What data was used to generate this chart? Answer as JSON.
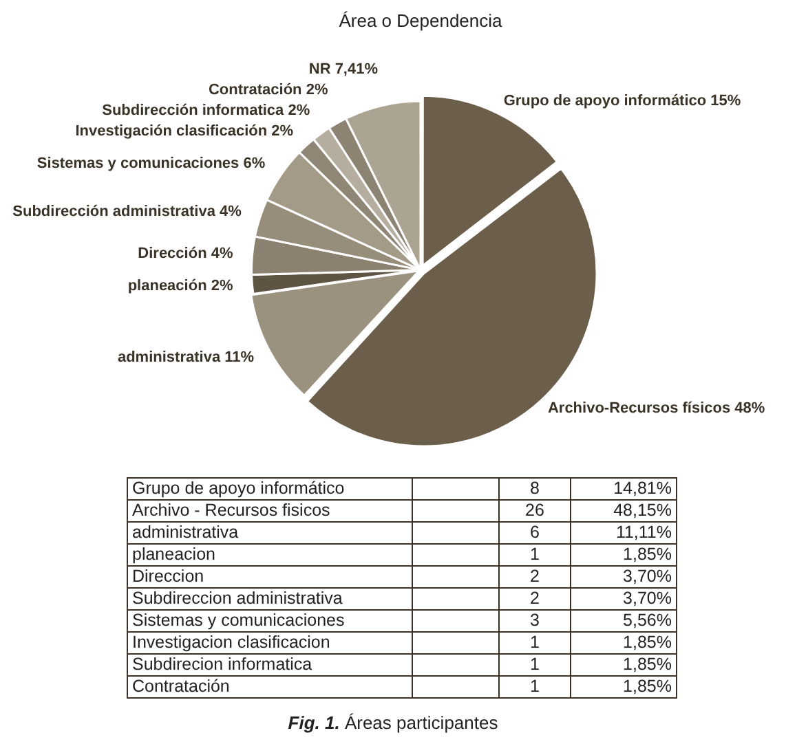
{
  "chart_data": [
    {
      "type": "pie",
      "title": "Área o Dependencia",
      "categories": [
        "Grupo de apoyo informático",
        "Archivo-Recursos físicos",
        "administrativa",
        "planeación",
        "Dirección",
        "Subdirección administrativa",
        "Sistemas y comunicaciones",
        "Investigación clasificación",
        "Subdirección informatica",
        "Contratación",
        "NR"
      ],
      "values": [
        14.81,
        48.15,
        11.11,
        1.85,
        3.7,
        3.7,
        5.56,
        1.85,
        1.85,
        1.85,
        7.41
      ],
      "value_labels": [
        "15%",
        "48%",
        "11%",
        "2%",
        "4%",
        "4%",
        "6%",
        "2%",
        "2%",
        "2%",
        "7,41%"
      ],
      "colors": [
        "#6b5f4c",
        "#6b5f4c",
        "#9a917f",
        "#5e5444",
        "#8a8170",
        "#968d7b",
        "#a39a88",
        "#8f8676",
        "#b5ae9f",
        "#8c8372",
        "#aca492"
      ],
      "legend": false
    },
    {
      "type": "other",
      "categories": [
        "Grupo de apoyo informático",
        "Archivo - Recursos fisicos",
        "administrativa",
        "planeacion",
        "Direccion",
        "Subdireccion administrativa",
        "Sistemas y comunicaciones",
        "Investigacion clasificacion",
        "Subdirecion informatica",
        "Contratación"
      ],
      "series": [
        {
          "values": [
            8,
            26,
            6,
            1,
            2,
            2,
            3,
            1,
            1,
            1
          ]
        },
        {
          "values": [
            14.81,
            48.15,
            11.11,
            1.85,
            3.7,
            3.7,
            5.56,
            1.85,
            1.85,
            1.85
          ],
          "value_labels": [
            "14,81%",
            "48,15%",
            "11,11%",
            "1,85%",
            "3,70%",
            "3,70%",
            "5,56%",
            "1,85%",
            "1,85%",
            "1,85%"
          ]
        }
      ],
      "data_labels": true,
      "annotations": [
        "Fig. 1. Áreas participantes"
      ]
    }
  ]
}
